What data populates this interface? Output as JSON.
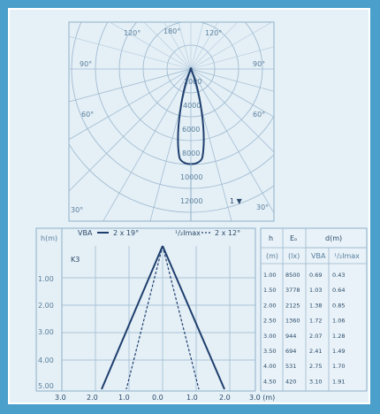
{
  "polar": {
    "angles_top": [
      "120°",
      "180°",
      "120°"
    ],
    "angles_side_upper": [
      "90°",
      "90°"
    ],
    "angles_side_mid": [
      "60°",
      "60°"
    ],
    "angles_bottom": [
      "30°",
      "30°"
    ],
    "intensity_labels": [
      "2000",
      "4000",
      "6000",
      "8000",
      "10000",
      "12000"
    ],
    "corner_mark": "1 ▼"
  },
  "cone": {
    "y_axis_label": "h(m)",
    "legend_solid": "VBA",
    "legend_solid_value": "2 x 19°",
    "legend_dashed_label": "¹/₂Imax",
    "legend_dashed_value": "2 x 12°",
    "tag": "K3",
    "y_ticks": [
      "1.00",
      "2.00",
      "3.00",
      "4.00",
      "5.00"
    ],
    "x_ticks": [
      "3.0",
      "2.0",
      "1.0",
      "0.0",
      "1.0",
      "2.0",
      "3.0 (m)"
    ]
  },
  "table": {
    "headers": [
      "h",
      "Eₒ",
      "d(m)"
    ],
    "units": [
      "(m)",
      "(lx)",
      "VBA",
      "¹/₂Imax"
    ],
    "rows": [
      [
        "1.00",
        "8500",
        "0.69",
        "0.43"
      ],
      [
        "1.50",
        "3778",
        "1.03",
        "0.64"
      ],
      [
        "2.00",
        "2125",
        "1.38",
        "0.85"
      ],
      [
        "2.50",
        "1360",
        "1.72",
        "1.06"
      ],
      [
        "3.00",
        "944",
        "2.07",
        "1.28"
      ],
      [
        "3.50",
        "694",
        "2.41",
        "1.49"
      ],
      [
        "4.00",
        "531",
        "2.75",
        "1.70"
      ],
      [
        "4.50",
        "420",
        "3.10",
        "1.91"
      ]
    ]
  },
  "colors": {
    "background": "#4a9fcb",
    "panel": "#ddebf3",
    "grid": "#9bb7cd",
    "curve": "#1f3f6e"
  }
}
